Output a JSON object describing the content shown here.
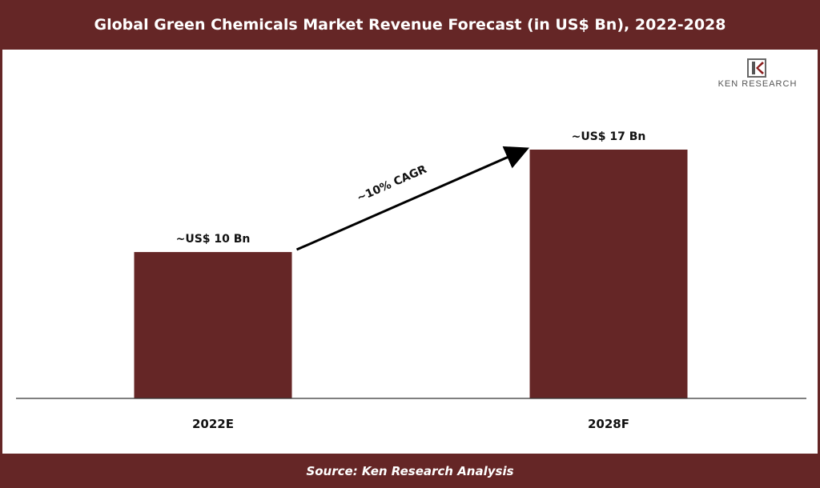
{
  "header": {
    "title": "Global Green Chemicals Market Revenue Forecast (in US$ Bn), 2022-2028"
  },
  "footer": {
    "source": "Source: Ken Research Analysis"
  },
  "logo": {
    "text": "KEN RESEARCH",
    "icon": "ken-research-k-logo"
  },
  "colors": {
    "bar": "#652626",
    "band": "#652626",
    "text": "#111111",
    "axis": "#333333"
  },
  "chart_data": {
    "type": "bar",
    "title": "Global Green Chemicals Market Revenue Forecast (in US$ Bn), 2022-2028",
    "categories": [
      "2022E",
      "2028F"
    ],
    "values": [
      10,
      17
    ],
    "data_labels": [
      "~US$ 10 Bn",
      "~US$ 17 Bn"
    ],
    "annotation": "~10% CAGR",
    "xlabel": "",
    "ylabel": "",
    "ylim": [
      0,
      17
    ],
    "grid": false,
    "legend": "none"
  }
}
